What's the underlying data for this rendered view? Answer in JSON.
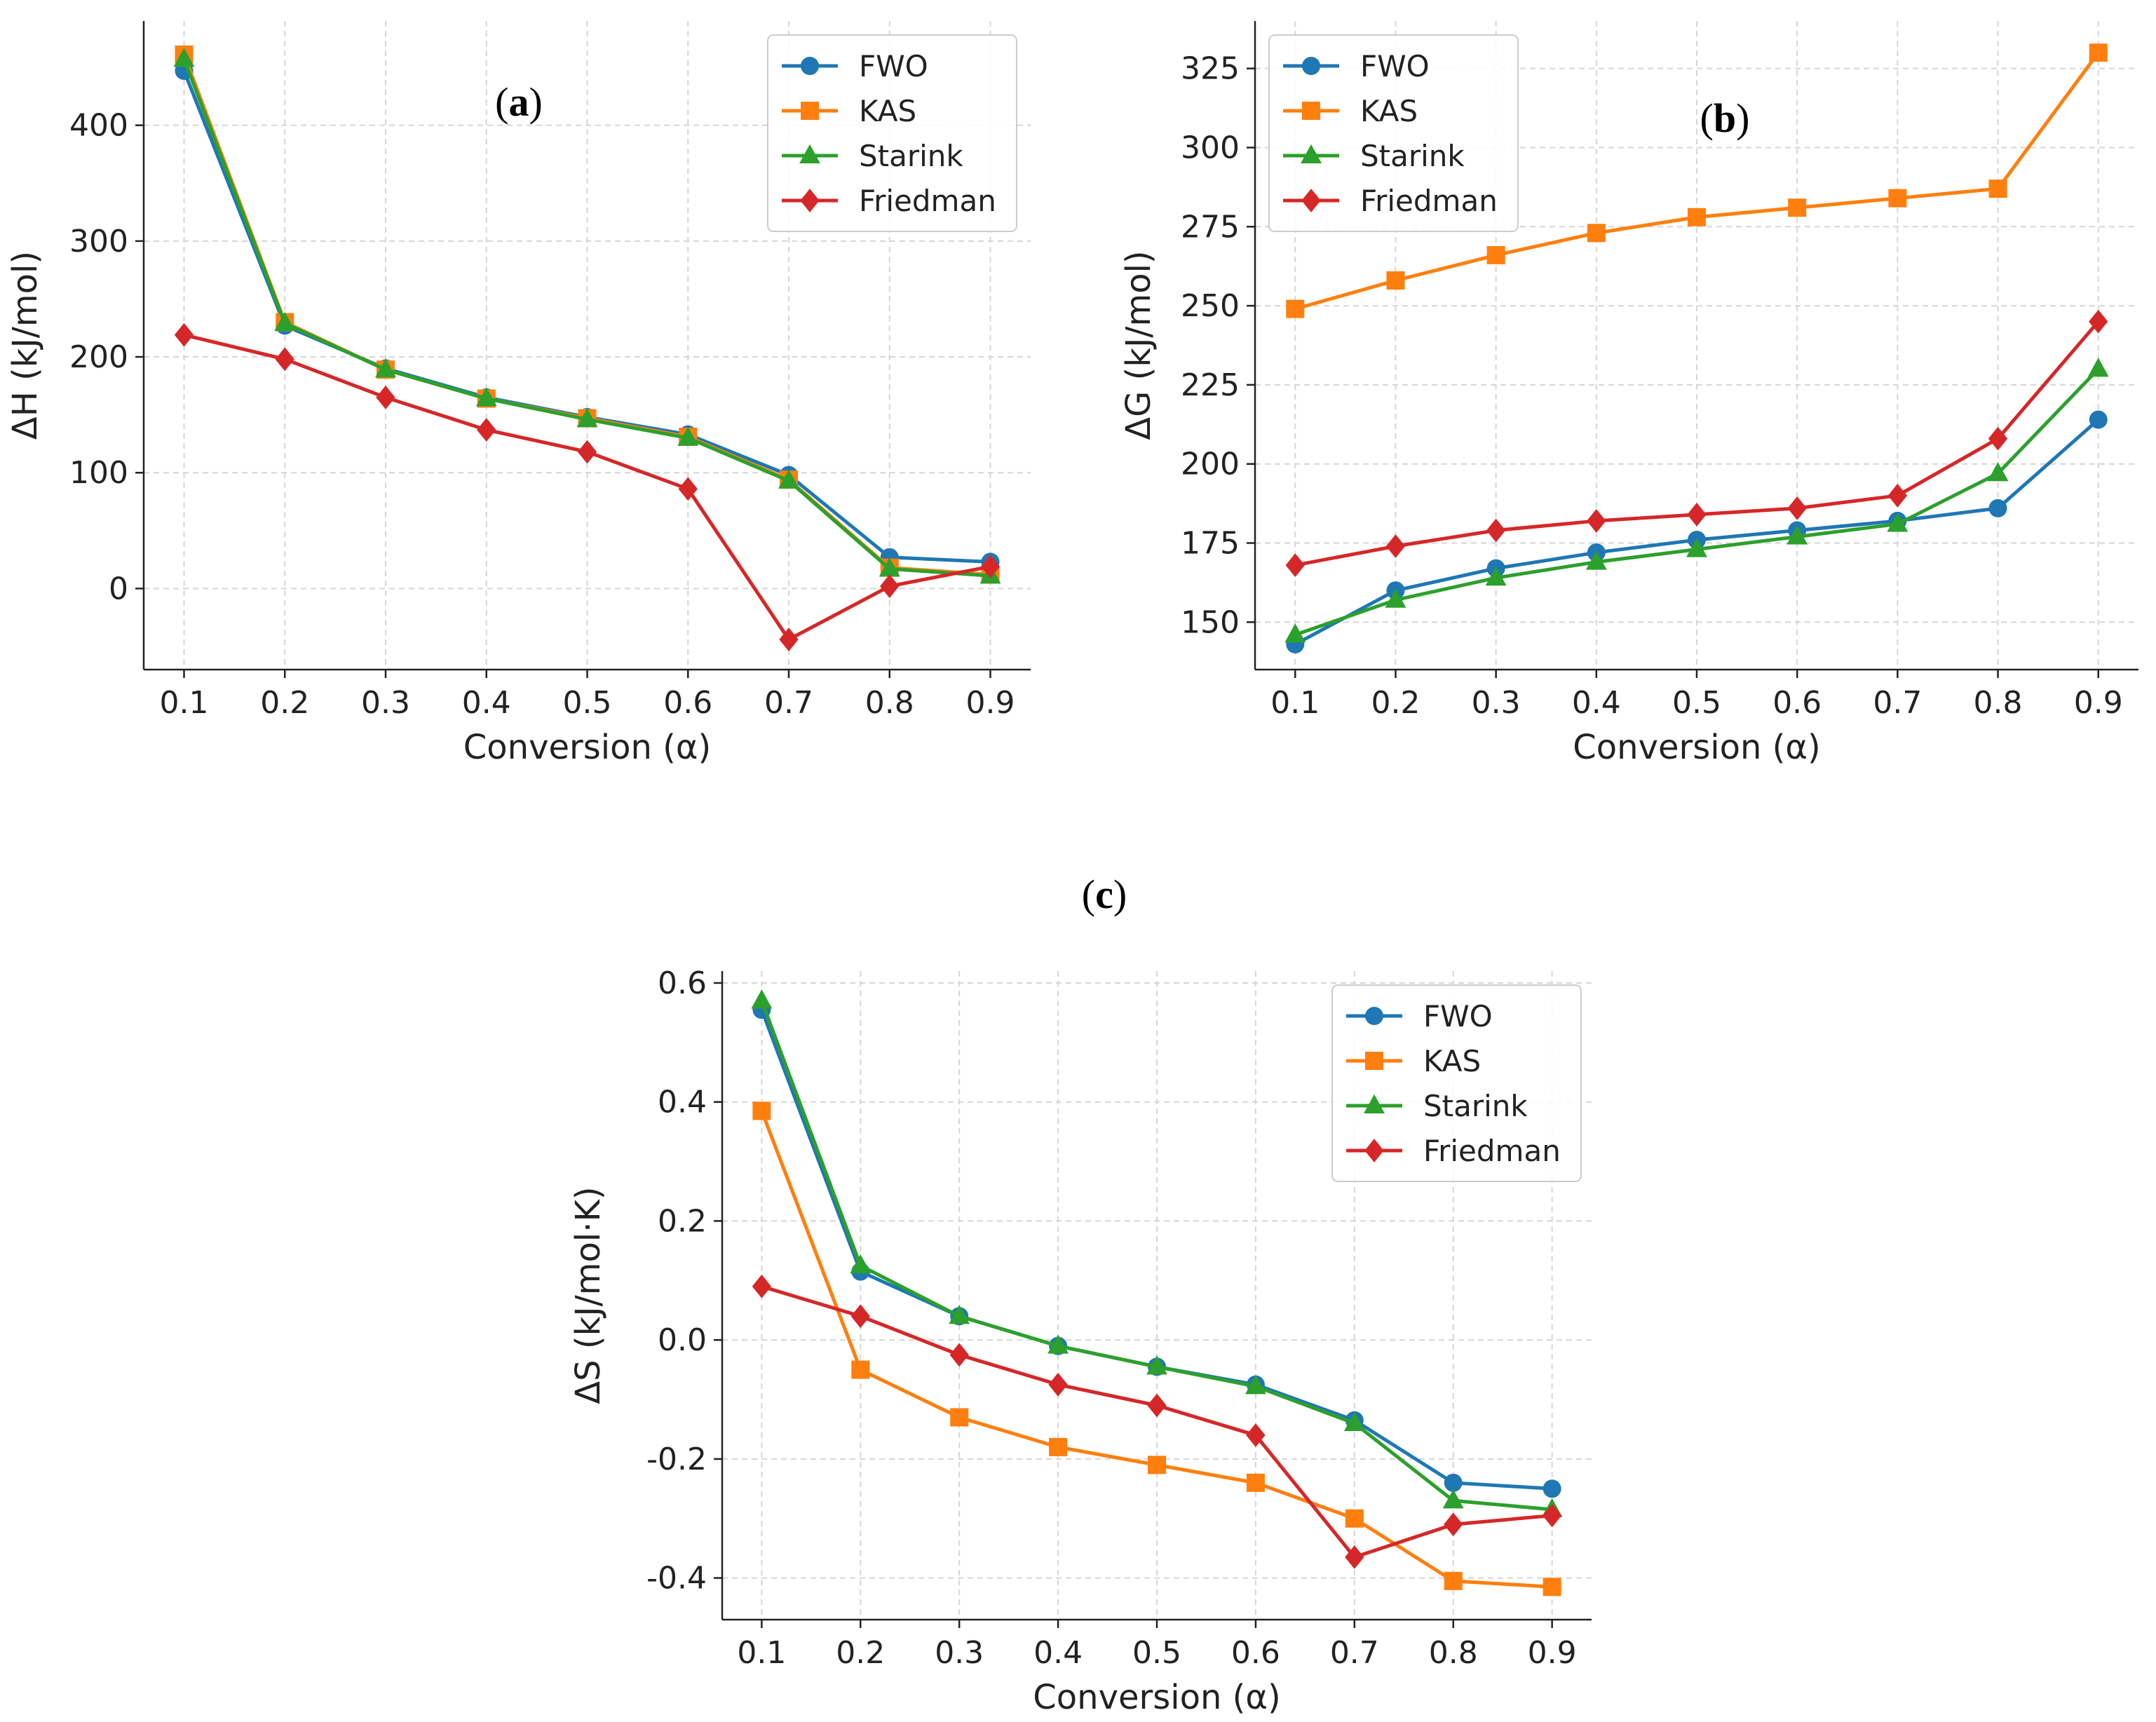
{
  "figure_caption_labels": [
    "(a)",
    "(b)",
    "(c)"
  ],
  "colors": {
    "FWO": "#1f77b4",
    "KAS": "#ff7f0e",
    "Starink": "#2ca02c",
    "Friedman": "#d62728"
  },
  "chart_data": [
    {
      "id": "a",
      "type": "line",
      "panel_label": "a",
      "xlabel": "Conversion (α)",
      "ylabel": "ΔH (kJ/mol)",
      "x": [
        0.1,
        0.2,
        0.3,
        0.4,
        0.5,
        0.6,
        0.7,
        0.8,
        0.9
      ],
      "xticks": [
        "0.1",
        "0.2",
        "0.3",
        "0.4",
        "0.5",
        "0.6",
        "0.7",
        "0.8",
        "0.9"
      ],
      "xlim": [
        0.06,
        0.94
      ],
      "ylim": [
        -70,
        490
      ],
      "yticks": [
        0,
        100,
        200,
        300,
        400
      ],
      "legend_position": "top-right",
      "series": [
        {
          "name": "FWO",
          "marker": "circle",
          "values": [
            447,
            227,
            190,
            165,
            148,
            133,
            98,
            27,
            23
          ]
        },
        {
          "name": "KAS",
          "marker": "square",
          "values": [
            461,
            230,
            189,
            164,
            147,
            131,
            94,
            18,
            12
          ]
        },
        {
          "name": "Starink",
          "marker": "triangle",
          "values": [
            457,
            229,
            189,
            164,
            146,
            130,
            93,
            17,
            11
          ]
        },
        {
          "name": "Friedman",
          "marker": "diamond",
          "values": [
            219,
            198,
            165,
            137,
            118,
            86,
            -44,
            2,
            19
          ]
        }
      ]
    },
    {
      "id": "b",
      "type": "line",
      "panel_label": "b",
      "xlabel": "Conversion (α)",
      "ylabel": "ΔG (kJ/mol)",
      "x": [
        0.1,
        0.2,
        0.3,
        0.4,
        0.5,
        0.6,
        0.7,
        0.8,
        0.9
      ],
      "xticks": [
        "0.1",
        "0.2",
        "0.3",
        "0.4",
        "0.5",
        "0.6",
        "0.7",
        "0.8",
        "0.9"
      ],
      "xlim": [
        0.06,
        0.94
      ],
      "ylim": [
        135,
        340
      ],
      "yticks": [
        150,
        175,
        200,
        225,
        250,
        275,
        300,
        325
      ],
      "legend_position": "top-left",
      "series": [
        {
          "name": "FWO",
          "marker": "circle",
          "values": [
            143,
            160,
            167,
            172,
            176,
            179,
            182,
            186,
            214
          ]
        },
        {
          "name": "KAS",
          "marker": "square",
          "values": [
            249,
            258,
            266,
            273,
            278,
            281,
            284,
            287,
            330
          ]
        },
        {
          "name": "Starink",
          "marker": "triangle",
          "values": [
            146,
            157,
            164,
            169,
            173,
            177,
            181,
            197,
            230
          ]
        },
        {
          "name": "Friedman",
          "marker": "diamond",
          "values": [
            168,
            174,
            179,
            182,
            184,
            186,
            190,
            208,
            245
          ]
        }
      ]
    },
    {
      "id": "c",
      "type": "line",
      "panel_label": "c",
      "xlabel": "Conversion (α)",
      "ylabel": "ΔS (kJ/mol·K)",
      "x": [
        0.1,
        0.2,
        0.3,
        0.4,
        0.5,
        0.6,
        0.7,
        0.8,
        0.9
      ],
      "xticks": [
        "0.1",
        "0.2",
        "0.3",
        "0.4",
        "0.5",
        "0.6",
        "0.7",
        "0.8",
        "0.9"
      ],
      "xlim": [
        0.06,
        0.94
      ],
      "ylim": [
        -0.47,
        0.62
      ],
      "yticks": [
        "-0.4",
        "-0.2",
        "0.0",
        "0.2",
        "0.4",
        "0.6"
      ],
      "legend_position": "top-right",
      "series": [
        {
          "name": "FWO",
          "marker": "circle",
          "values": [
            0.555,
            0.115,
            0.04,
            -0.01,
            -0.045,
            -0.075,
            -0.135,
            -0.24,
            -0.25
          ]
        },
        {
          "name": "KAS",
          "marker": "square",
          "values": [
            0.385,
            -0.05,
            -0.13,
            -0.18,
            -0.21,
            -0.24,
            -0.3,
            -0.405,
            -0.415
          ]
        },
        {
          "name": "Starink",
          "marker": "triangle",
          "values": [
            0.57,
            0.125,
            0.04,
            -0.01,
            -0.045,
            -0.078,
            -0.14,
            -0.27,
            -0.285
          ]
        },
        {
          "name": "Friedman",
          "marker": "diamond",
          "values": [
            0.09,
            0.04,
            -0.025,
            -0.075,
            -0.11,
            -0.16,
            -0.365,
            -0.31,
            -0.295
          ]
        }
      ]
    }
  ]
}
